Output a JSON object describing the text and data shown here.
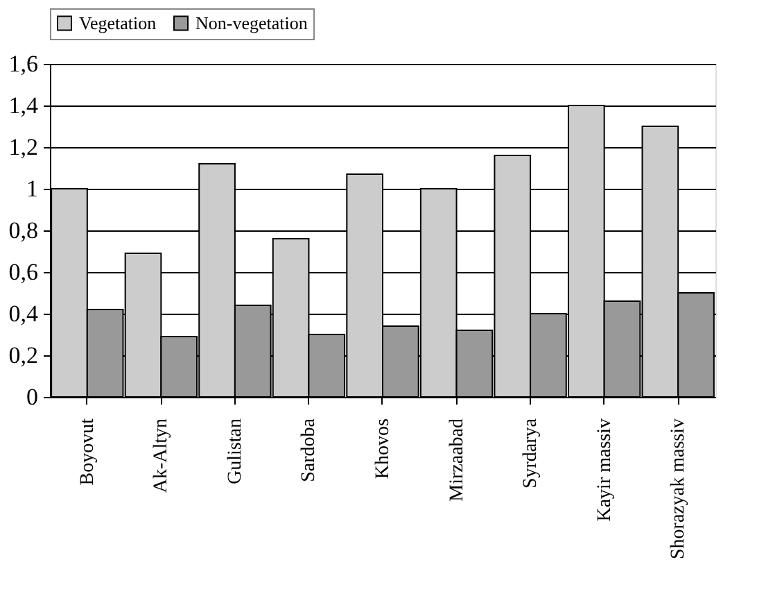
{
  "chart_data": {
    "type": "bar",
    "categories": [
      "Boyovut",
      "Ak-Altyn",
      "Gulistan",
      "Sardoba",
      "Khovos",
      "Mirzaabad",
      "Syrdarya",
      "Kayir massiv",
      "Shorazyak massiv"
    ],
    "series": [
      {
        "name": "Vegetation",
        "color": "#cccccc",
        "values": [
          1.0,
          0.69,
          1.12,
          0.76,
          1.07,
          1.0,
          1.16,
          1.4,
          1.3
        ]
      },
      {
        "name": "Non-vegetation",
        "color": "#999999",
        "values": [
          0.42,
          0.29,
          0.44,
          0.3,
          0.34,
          0.32,
          0.4,
          0.46,
          0.5
        ]
      }
    ],
    "ylim": [
      0,
      1.6
    ],
    "yticks": [
      0,
      {
        "value": 0.2,
        "label": "0,2"
      },
      {
        "value": 0.4,
        "label": "0,4"
      },
      {
        "value": 0.6,
        "label": "0,6"
      },
      {
        "value": 0.8,
        "label": "0,8"
      },
      1,
      {
        "value": 1.2,
        "label": "1,2"
      },
      {
        "value": 1.4,
        "label": "1,4"
      },
      {
        "value": 1.6,
        "label": "1,6"
      }
    ],
    "grid": "y",
    "legend": "top"
  }
}
